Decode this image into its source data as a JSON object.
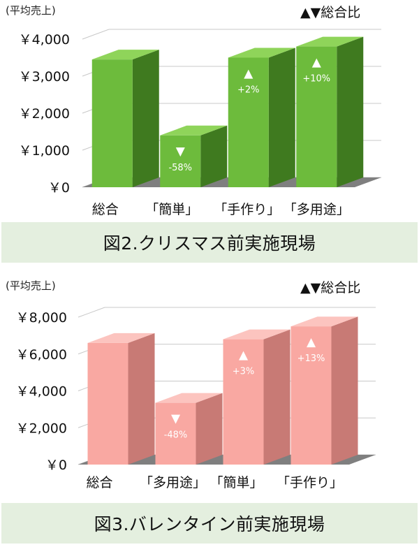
{
  "chart_data": [
    {
      "type": "bar",
      "ylabel": "(平均売上)",
      "legend_note": "▲▼総合比",
      "categories": [
        "総合",
        "「簡単」",
        "「手作り」",
        "「多用途」"
      ],
      "values": [
        3450,
        1400,
        3500,
        3800
      ],
      "annotations": [
        "",
        "-58%",
        "+2%",
        "+10%"
      ],
      "annotation_marks": [
        "",
        "▼",
        "▲",
        "▲"
      ],
      "yticks": [
        "￥0",
        "￥1,000",
        "￥2,000",
        "￥3,000",
        "￥4,000"
      ],
      "ylim": [
        0,
        4000
      ],
      "caption": "図2.クリスマス前実施現場",
      "colors": {
        "front": "#6dbb3c",
        "side": "#3f7a1f",
        "top": "#8fd45a",
        "floor": "#7f7f7f"
      }
    },
    {
      "type": "bar",
      "ylabel": "(平均売上)",
      "legend_note": "▲▼総合比",
      "categories": [
        "総合",
        "「多用途」",
        "「簡単」",
        "「手作り」"
      ],
      "values": [
        6600,
        3350,
        6800,
        7500
      ],
      "annotations": [
        "",
        "-48%",
        "+3%",
        "+13%"
      ],
      "annotation_marks": [
        "",
        "▼",
        "▲",
        "▲"
      ],
      "yticks": [
        "￥0",
        "￥2,000",
        "￥4,000",
        "￥6,000",
        "￥8,000"
      ],
      "ylim": [
        0,
        8000
      ],
      "caption": "図3.バレンタイン前実施現場",
      "colors": {
        "front": "#f9a8a2",
        "side": "#c87a75",
        "top": "#fcc4bf",
        "floor": "#7f7f7f"
      }
    }
  ]
}
